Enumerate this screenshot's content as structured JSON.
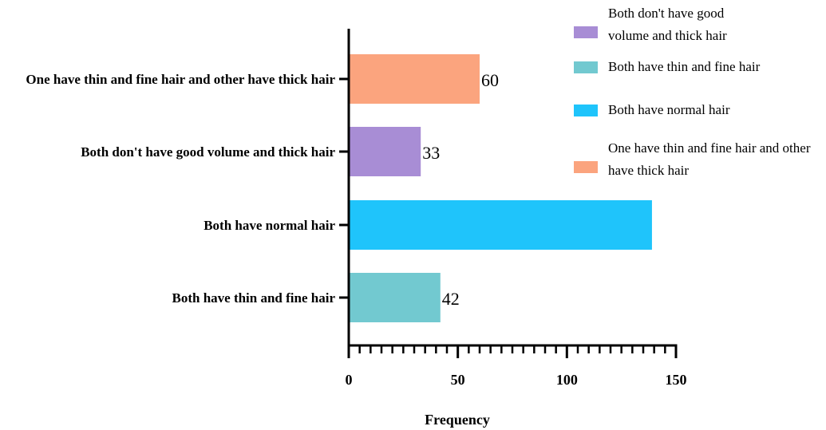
{
  "chart_data": {
    "type": "bar",
    "orientation": "horizontal",
    "categories": [
      "One have thin and fine hair and other have thick hair",
      "Both don't have good volume and thick hair",
      "Both have normal hair",
      "Both have thin and fine hair"
    ],
    "values": [
      60,
      33,
      139,
      42
    ],
    "value_labels": [
      "60",
      "33",
      "",
      "42"
    ],
    "colors": [
      "#fba47e",
      "#a88dd5",
      "#1fc4fb",
      "#72c9d0"
    ],
    "xlabel": "Frequency",
    "xlim": [
      0,
      150
    ],
    "xticks": [
      "0",
      "50",
      "100",
      "150"
    ],
    "grid": false,
    "legend": {
      "placement": "top-right",
      "entries": [
        {
          "lines": [
            "Both don't have good",
            "volume and thick hair"
          ],
          "color": "#a88dd5"
        },
        {
          "lines": [
            "Both have thin and fine hair"
          ],
          "color": "#72c9d0"
        },
        {
          "lines": [
            "Both have normal hair"
          ],
          "color": "#1fc4fb"
        },
        {
          "lines": [
            "One have thin and fine hair and other",
            "have thick hair"
          ],
          "color": "#fba47e"
        }
      ]
    }
  }
}
